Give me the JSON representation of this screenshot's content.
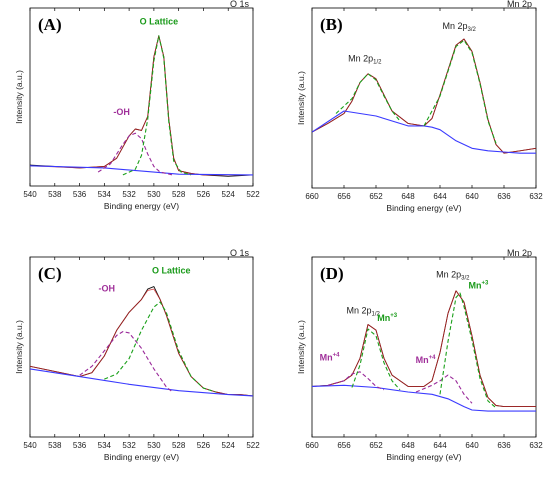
{
  "chart_data": [
    {
      "type": "line",
      "panel_label": "(A)",
      "corner_label": "O 1s",
      "xlabel": "Binding energy (eV)",
      "ylabel": "Intensity (a.u.)",
      "xlim": [
        540,
        522
      ],
      "x_ticks": [
        540,
        538,
        536,
        534,
        532,
        530,
        528,
        526,
        524,
        522
      ],
      "series": [
        {
          "role": "raw",
          "color": "#111111",
          "x": [
            540,
            538,
            536,
            534,
            533,
            532,
            531.5,
            531,
            530.5,
            530,
            529.6,
            529.2,
            528.8,
            528.4,
            528,
            527,
            526,
            524,
            522
          ],
          "y": [
            0.07,
            0.06,
            0.05,
            0.06,
            0.12,
            0.28,
            0.33,
            0.32,
            0.42,
            0.85,
            1.0,
            0.85,
            0.4,
            0.12,
            0.03,
            0.01,
            0.0,
            -0.01,
            0.0
          ]
        },
        {
          "role": "fit",
          "color": "#d02020",
          "x": [
            540,
            538,
            536,
            534,
            533,
            532,
            531.5,
            531,
            530.5,
            530,
            529.6,
            529.2,
            528.8,
            528.4,
            528,
            527,
            526,
            524,
            522
          ],
          "y": [
            0.065,
            0.058,
            0.05,
            0.06,
            0.12,
            0.28,
            0.33,
            0.32,
            0.42,
            0.85,
            1.0,
            0.85,
            0.4,
            0.12,
            0.03,
            0.01,
            0.0,
            0.0,
            0.0
          ]
        },
        {
          "role": "background",
          "color": "#3a3aff",
          "x": [
            540,
            534,
            530,
            528,
            522
          ],
          "y": [
            0.065,
            0.05,
            0.02,
            0.005,
            0.0
          ]
        },
        {
          "role": "component",
          "color": "#9a2a9a",
          "dash": true,
          "x": [
            534.5,
            533.5,
            532.5,
            532,
            531.5,
            531,
            530.5,
            530,
            529.5,
            528.5
          ],
          "y": [
            0.02,
            0.08,
            0.22,
            0.28,
            0.3,
            0.26,
            0.15,
            0.06,
            0.02,
            0.0
          ]
        },
        {
          "role": "component",
          "color": "#1aa01a",
          "dash": true,
          "x": [
            532.5,
            531.5,
            531,
            530.5,
            530,
            529.6,
            529.2,
            528.8,
            528.4,
            527.8,
            527
          ],
          "y": [
            0.0,
            0.04,
            0.14,
            0.4,
            0.82,
            1.0,
            0.84,
            0.38,
            0.1,
            0.02,
            0.0
          ]
        }
      ],
      "annotations": [
        {
          "text": "-OH",
          "color": "#a0309a",
          "x": 532.6,
          "y": 0.43
        },
        {
          "text": "O Lattice",
          "color": "#1a9a1a",
          "x": 529.6,
          "y": 1.08
        }
      ]
    },
    {
      "type": "line",
      "panel_label": "(B)",
      "corner_label": "Mn 2p",
      "xlabel": "Binding energy (eV)",
      "ylabel": "Intensity (a.u.)",
      "xlim": [
        660,
        632
      ],
      "x_ticks": [
        660,
        656,
        652,
        648,
        644,
        640,
        636,
        632
      ],
      "series": [
        {
          "role": "raw",
          "color": "#111111",
          "x": [
            660,
            658,
            656,
            655,
            654,
            653,
            652,
            651,
            650,
            648,
            646,
            645,
            644,
            643,
            642,
            641,
            640,
            639,
            638,
            637,
            636,
            634,
            632
          ],
          "y": [
            0.55,
            0.62,
            0.7,
            0.8,
            0.95,
            1.02,
            0.98,
            0.85,
            0.72,
            0.62,
            0.6,
            0.66,
            0.85,
            1.05,
            1.25,
            1.3,
            1.2,
            0.95,
            0.65,
            0.45,
            0.38,
            0.4,
            0.42
          ]
        },
        {
          "role": "fit",
          "color": "#d02020",
          "x": [
            660,
            658,
            656,
            655,
            654,
            653,
            652,
            651,
            650,
            648,
            646,
            645,
            644,
            643,
            642,
            641,
            640,
            639,
            638,
            637,
            636,
            634,
            632
          ],
          "y": [
            0.55,
            0.62,
            0.7,
            0.8,
            0.95,
            1.02,
            0.98,
            0.85,
            0.72,
            0.62,
            0.6,
            0.66,
            0.85,
            1.05,
            1.25,
            1.3,
            1.2,
            0.95,
            0.65,
            0.45,
            0.38,
            0.4,
            0.42
          ]
        },
        {
          "role": "background",
          "color": "#3a3aff",
          "x": [
            660,
            656,
            652,
            648,
            646,
            645,
            644,
            642,
            640,
            638,
            636,
            634,
            632
          ],
          "y": [
            0.55,
            0.72,
            0.68,
            0.6,
            0.6,
            0.59,
            0.57,
            0.48,
            0.42,
            0.4,
            0.39,
            0.38,
            0.38
          ]
        },
        {
          "role": "component",
          "color": "#1aa01a",
          "dash": true,
          "x": [
            657,
            655,
            654,
            653,
            652,
            651,
            650,
            649
          ],
          "y": [
            0.7,
            0.82,
            0.95,
            1.02,
            0.97,
            0.84,
            0.72,
            0.64
          ]
        },
        {
          "role": "component",
          "color": "#1aa01a",
          "dash": true,
          "x": [
            646,
            644,
            643,
            642,
            641,
            640,
            639,
            638,
            637
          ],
          "y": [
            0.6,
            0.84,
            1.04,
            1.24,
            1.29,
            1.19,
            0.94,
            0.64,
            0.46
          ]
        }
      ],
      "annotations": [
        {
          "text": "Mn 2p",
          "sub": "1/2",
          "x": 653.4,
          "y": 1.12
        },
        {
          "text": "Mn 2p",
          "sub": "3/2",
          "x": 641.6,
          "y": 1.38
        }
      ]
    },
    {
      "type": "line",
      "panel_label": "(C)",
      "corner_label": "O 1s",
      "xlabel": "Binding energy (eV)",
      "ylabel": "Intensity (a.u.)",
      "xlim": [
        540,
        522
      ],
      "x_ticks": [
        540,
        538,
        536,
        534,
        532,
        530,
        528,
        526,
        524,
        522
      ],
      "series": [
        {
          "role": "raw",
          "color": "#111111",
          "x": [
            540,
            538,
            536,
            535,
            534,
            533,
            532,
            531,
            530.5,
            530,
            529.5,
            529,
            528.5,
            528,
            527,
            526,
            525,
            524,
            523,
            522
          ],
          "y": [
            0.3,
            0.26,
            0.22,
            0.25,
            0.38,
            0.58,
            0.72,
            0.82,
            0.9,
            0.92,
            0.82,
            0.7,
            0.55,
            0.4,
            0.22,
            0.13,
            0.1,
            0.08,
            0.08,
            0.07
          ]
        },
        {
          "role": "fit",
          "color": "#d02020",
          "x": [
            540,
            538,
            536,
            535,
            534,
            533,
            532,
            531,
            530.5,
            530,
            529.5,
            529,
            528.5,
            528,
            527,
            526,
            525,
            524,
            523,
            522
          ],
          "y": [
            0.3,
            0.26,
            0.22,
            0.25,
            0.38,
            0.58,
            0.72,
            0.82,
            0.89,
            0.9,
            0.82,
            0.7,
            0.55,
            0.4,
            0.22,
            0.13,
            0.1,
            0.08,
            0.08,
            0.07
          ]
        },
        {
          "role": "background",
          "color": "#3a3aff",
          "x": [
            540,
            536,
            532,
            528,
            524,
            522
          ],
          "y": [
            0.28,
            0.22,
            0.16,
            0.11,
            0.08,
            0.07
          ]
        },
        {
          "role": "component",
          "color": "#9a2a9a",
          "dash": true,
          "x": [
            536,
            535,
            534,
            533,
            532.5,
            532,
            531,
            530,
            529,
            528.5
          ],
          "y": [
            0.23,
            0.3,
            0.42,
            0.54,
            0.57,
            0.56,
            0.44,
            0.28,
            0.14,
            0.1
          ]
        },
        {
          "role": "component",
          "color": "#1aa01a",
          "dash": true,
          "x": [
            534,
            533,
            532,
            531,
            530,
            529.5,
            529,
            528.5,
            528,
            527,
            526,
            525
          ],
          "y": [
            0.2,
            0.24,
            0.36,
            0.58,
            0.76,
            0.8,
            0.72,
            0.57,
            0.42,
            0.22,
            0.13,
            0.1
          ]
        }
      ],
      "annotations": [
        {
          "text": "-OH",
          "color": "#a0309a",
          "x": 533.8,
          "y": 0.88
        },
        {
          "text": "O Lattice",
          "color": "#1a9a1a",
          "x": 528.6,
          "y": 1.02
        }
      ]
    },
    {
      "type": "line",
      "panel_label": "(D)",
      "corner_label": "Mn 2p",
      "xlabel": "Binding energy (eV)",
      "ylabel": "Intensity (a.u.)",
      "xlim": [
        660,
        632
      ],
      "x_ticks": [
        660,
        656,
        652,
        648,
        644,
        640,
        636,
        632
      ],
      "series": [
        {
          "role": "raw",
          "color": "#111111",
          "x": [
            660,
            658,
            656,
            655,
            654,
            653,
            652,
            651,
            650,
            648,
            646,
            645,
            644,
            643,
            642,
            641,
            640,
            639,
            638,
            637,
            636,
            634,
            632
          ],
          "y": [
            0.45,
            0.46,
            0.5,
            0.55,
            0.7,
            1.0,
            0.95,
            0.7,
            0.55,
            0.45,
            0.45,
            0.5,
            0.75,
            1.1,
            1.3,
            1.2,
            0.9,
            0.55,
            0.35,
            0.28,
            0.27,
            0.27,
            0.27
          ]
        },
        {
          "role": "fit",
          "color": "#d02020",
          "x": [
            660,
            658,
            656,
            655,
            654,
            653,
            652,
            651,
            650,
            648,
            646,
            645,
            644,
            643,
            642,
            641,
            640,
            639,
            638,
            637,
            636,
            634,
            632
          ],
          "y": [
            0.45,
            0.46,
            0.5,
            0.55,
            0.7,
            1.0,
            0.95,
            0.7,
            0.55,
            0.45,
            0.45,
            0.5,
            0.75,
            1.1,
            1.3,
            1.2,
            0.9,
            0.55,
            0.35,
            0.28,
            0.27,
            0.27,
            0.27
          ]
        },
        {
          "role": "background",
          "color": "#3a3aff",
          "x": [
            660,
            656,
            652,
            648,
            645,
            643,
            641,
            640,
            638,
            636,
            634,
            632
          ],
          "y": [
            0.45,
            0.46,
            0.44,
            0.4,
            0.38,
            0.34,
            0.27,
            0.24,
            0.23,
            0.23,
            0.23,
            0.23
          ]
        },
        {
          "role": "component",
          "color": "#9a2a9a",
          "dash": true,
          "x": [
            658,
            656,
            655,
            654,
            653,
            652,
            651
          ],
          "y": [
            0.46,
            0.5,
            0.56,
            0.58,
            0.52,
            0.45,
            0.42
          ]
        },
        {
          "role": "component",
          "color": "#1aa01a",
          "dash": true,
          "x": [
            655,
            654,
            653,
            652,
            651,
            650,
            649
          ],
          "y": [
            0.44,
            0.64,
            0.96,
            0.9,
            0.66,
            0.5,
            0.42
          ]
        },
        {
          "role": "component",
          "color": "#9a2a9a",
          "dash": true,
          "x": [
            647,
            645,
            644,
            643,
            642,
            641,
            640
          ],
          "y": [
            0.4,
            0.46,
            0.5,
            0.55,
            0.5,
            0.38,
            0.3
          ]
        },
        {
          "role": "component",
          "color": "#1aa01a",
          "dash": true,
          "x": [
            644,
            643,
            642,
            641.5,
            641,
            640,
            639,
            638,
            637
          ],
          "y": [
            0.38,
            0.85,
            1.24,
            1.28,
            1.16,
            0.86,
            0.52,
            0.32,
            0.26
          ]
        }
      ],
      "annotations": [
        {
          "text": "Mn 2p",
          "sub": "1/2",
          "x": 653.6,
          "y": 1.1
        },
        {
          "text": "Mn",
          "sup": "+3",
          "color": "#1a9a1a",
          "x": 650.6,
          "y": 1.03
        },
        {
          "text": "Mn",
          "sup": "+4",
          "color": "#a0309a",
          "x": 657.8,
          "y": 0.68
        },
        {
          "text": "Mn",
          "sup": "+4",
          "color": "#a0309a",
          "x": 645.8,
          "y": 0.66
        },
        {
          "text": "Mn 2p",
          "sub": "3/2",
          "x": 642.4,
          "y": 1.42
        },
        {
          "text": "Mn",
          "sup": "+3",
          "color": "#1a9a1a",
          "x": 639.2,
          "y": 1.32
        }
      ]
    }
  ]
}
